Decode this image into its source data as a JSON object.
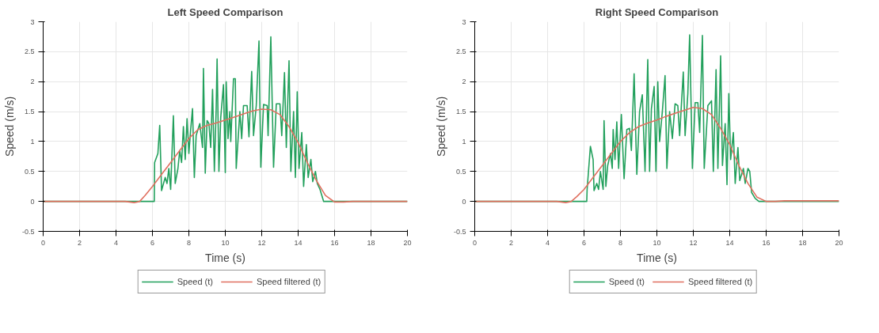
{
  "chart_data": [
    {
      "type": "line",
      "title": "Left Speed Comparison",
      "xlabel": "Time (s)",
      "ylabel": "Speed (m/s)",
      "xlim": [
        0,
        20
      ],
      "ylim": [
        -0.5,
        3
      ],
      "xticks": [
        0,
        2,
        4,
        6,
        8,
        10,
        12,
        14,
        16,
        18,
        20
      ],
      "yticks": [
        -0.5,
        0,
        0.5,
        1,
        1.5,
        2,
        2.5,
        3
      ],
      "grid": true,
      "legend": "bottom",
      "line_style": "solid",
      "series": [
        {
          "name": "Speed (t)",
          "color": "#22a05c",
          "x": [
            0,
            6.1,
            6.12,
            6.3,
            6.4,
            6.5,
            6.7,
            6.8,
            6.9,
            7.0,
            7.15,
            7.25,
            7.4,
            7.5,
            7.6,
            7.7,
            7.8,
            7.9,
            8.0,
            8.1,
            8.2,
            8.3,
            8.4,
            8.6,
            8.75,
            8.8,
            8.9,
            9.0,
            9.1,
            9.2,
            9.3,
            9.4,
            9.5,
            9.55,
            9.65,
            9.75,
            9.9,
            10.0,
            10.05,
            10.15,
            10.25,
            10.3,
            10.45,
            10.55,
            10.6,
            10.8,
            10.9,
            11.0,
            11.2,
            11.3,
            11.45,
            11.55,
            11.7,
            11.85,
            11.95,
            12.1,
            12.3,
            12.35,
            12.5,
            12.65,
            12.8,
            13.0,
            13.1,
            13.25,
            13.35,
            13.5,
            13.6,
            13.75,
            13.85,
            13.95,
            14.05,
            14.2,
            14.3,
            14.45,
            14.55,
            14.7,
            14.8,
            14.95,
            15.05,
            15.2,
            15.4,
            20
          ],
          "values": [
            0,
            0,
            0.65,
            0.8,
            1.27,
            0.18,
            0.4,
            0.3,
            0.55,
            0.2,
            1.43,
            0.3,
            0.55,
            0.85,
            0.65,
            1.25,
            0.7,
            1.38,
            0.8,
            1.2,
            1.55,
            0.4,
            1.1,
            1.3,
            0.9,
            2.22,
            0.47,
            1.35,
            1.3,
            0.9,
            1.87,
            0.5,
            1.55,
            2.38,
            0.5,
            1.4,
            1.95,
            0.48,
            2.0,
            1.05,
            1.5,
            1.0,
            2.05,
            2.05,
            0.55,
            1.5,
            1.05,
            1.6,
            1.6,
            1.08,
            2.17,
            1.1,
            1.6,
            2.68,
            0.57,
            1.62,
            1.6,
            1.1,
            2.75,
            0.57,
            1.63,
            1.63,
            1.1,
            2.15,
            0.9,
            2.35,
            0.5,
            1.5,
            0.4,
            1.83,
            0.55,
            1.15,
            0.25,
            0.95,
            0.4,
            0.7,
            0.33,
            0.5,
            0.3,
            0.2,
            0,
            0
          ]
        },
        {
          "name": "Speed filtered (t)",
          "color": "#e07060",
          "x": [
            0,
            4.5,
            5.0,
            5.3,
            5.6,
            6.0,
            6.5,
            7.0,
            7.5,
            8.0,
            8.5,
            9.0,
            9.5,
            10.0,
            10.5,
            11.0,
            11.5,
            12.0,
            12.5,
            13.0,
            13.5,
            14.0,
            14.5,
            15.0,
            15.5,
            16.0,
            16.5,
            17,
            20
          ],
          "values": [
            0,
            0,
            -0.02,
            0,
            0.1,
            0.25,
            0.45,
            0.65,
            0.85,
            1.05,
            1.2,
            1.27,
            1.31,
            1.36,
            1.41,
            1.46,
            1.51,
            1.54,
            1.53,
            1.45,
            1.25,
            0.98,
            0.65,
            0.35,
            0.1,
            -0.01,
            -0.01,
            0,
            0
          ]
        }
      ]
    },
    {
      "type": "line",
      "title": "Right Speed Comparison",
      "xlabel": "Time (s)",
      "ylabel": "Speed (m/s)",
      "xlim": [
        0,
        20
      ],
      "ylim": [
        -0.5,
        3
      ],
      "xticks": [
        0,
        2,
        4,
        6,
        8,
        10,
        12,
        14,
        16,
        18,
        20
      ],
      "yticks": [
        -0.5,
        0,
        0.5,
        1,
        1.5,
        2,
        2.5,
        3
      ],
      "grid": true,
      "legend": "bottom",
      "line_style": "solid",
      "series": [
        {
          "name": "Speed (t)",
          "color": "#22a05c",
          "x": [
            0,
            6.15,
            6.17,
            6.35,
            6.5,
            6.55,
            6.7,
            6.8,
            6.9,
            7.05,
            7.1,
            7.2,
            7.3,
            7.45,
            7.55,
            7.6,
            7.7,
            7.8,
            7.9,
            8.05,
            8.2,
            8.35,
            8.5,
            8.6,
            8.75,
            8.9,
            9.05,
            9.2,
            9.35,
            9.5,
            9.6,
            9.7,
            9.85,
            9.95,
            10.05,
            10.15,
            10.3,
            10.45,
            10.55,
            10.7,
            10.85,
            11.0,
            11.15,
            11.25,
            11.45,
            11.55,
            11.7,
            11.8,
            11.95,
            12.1,
            12.25,
            12.35,
            12.5,
            12.6,
            12.8,
            13.0,
            13.1,
            13.25,
            13.35,
            13.5,
            13.6,
            13.75,
            13.85,
            13.95,
            14.05,
            14.2,
            14.3,
            14.45,
            14.55,
            14.75,
            14.85,
            15.0,
            15.1,
            15.2,
            15.4,
            15.6,
            20
          ],
          "values": [
            0,
            0,
            0.2,
            0.92,
            0.7,
            0.18,
            0.3,
            0.2,
            0.5,
            0.2,
            1.35,
            0.25,
            0.6,
            0.8,
            0.55,
            1.2,
            0.7,
            1.33,
            0.55,
            1.45,
            0.38,
            1.2,
            1.22,
            0.85,
            2.13,
            0.45,
            1.5,
            1.78,
            0.5,
            2.37,
            0.5,
            1.55,
            1.92,
            0.5,
            2.0,
            1.0,
            1.5,
            2.1,
            0.55,
            1.5,
            1.05,
            1.63,
            1.6,
            1.1,
            2.16,
            1.1,
            1.8,
            2.78,
            0.55,
            1.65,
            1.65,
            1.15,
            2.77,
            0.55,
            1.6,
            1.68,
            0.5,
            2.2,
            0.55,
            2.43,
            0.6,
            1.3,
            0.28,
            1.8,
            0.7,
            1.15,
            0.3,
            0.9,
            0.35,
            0.55,
            0.3,
            0.55,
            0.5,
            0.15,
            0.05,
            0,
            0
          ]
        },
        {
          "name": "Speed filtered (t)",
          "color": "#e07060",
          "x": [
            0,
            4.5,
            5.0,
            5.3,
            5.6,
            6.0,
            6.5,
            7.0,
            7.5,
            8.0,
            8.5,
            9.0,
            9.5,
            10.0,
            10.5,
            11.0,
            11.5,
            12.0,
            12.5,
            13.0,
            13.5,
            14.0,
            14.5,
            15.0,
            15.5,
            16.0,
            16.5,
            17,
            20
          ],
          "values": [
            0,
            0,
            -0.02,
            0,
            0.08,
            0.2,
            0.4,
            0.6,
            0.8,
            1.0,
            1.15,
            1.25,
            1.31,
            1.36,
            1.42,
            1.47,
            1.52,
            1.57,
            1.55,
            1.45,
            1.22,
            0.95,
            0.6,
            0.3,
            0.07,
            0,
            0,
            0.01,
            0.01
          ]
        }
      ]
    }
  ]
}
